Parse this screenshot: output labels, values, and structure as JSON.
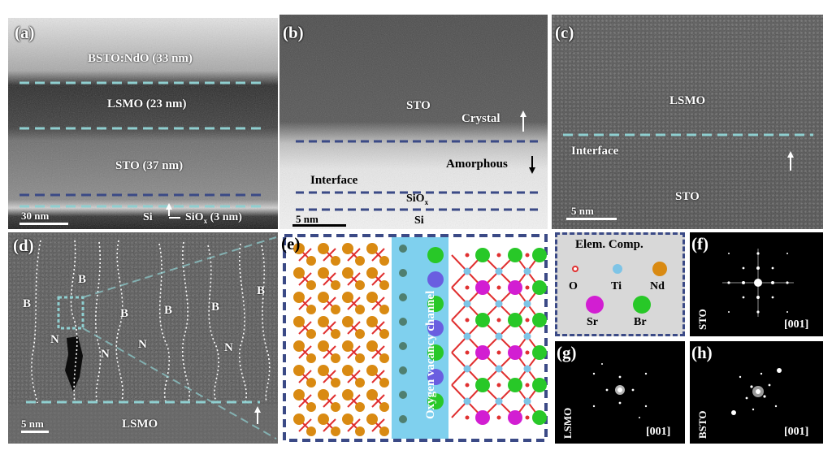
{
  "panels": {
    "a": {
      "label": "(a)",
      "layers": [
        "BSTO:NdO (33 nm)",
        "LSMO (23 nm)",
        "STO (37 nm)"
      ],
      "si": "Si",
      "siox": "SiO",
      "siox_sub": "x",
      "siox_thk": "(3 nm)",
      "scalebar": "30 nm"
    },
    "b": {
      "label": "(b)",
      "sto": "STO",
      "crystal": "Crystal",
      "amorphous": "Amorphous",
      "interface": "Interface",
      "siox": "SiO",
      "siox_sub": "x",
      "si": "Si",
      "scalebar": "5 nm"
    },
    "c": {
      "label": "(c)",
      "lsmo": "LSMO",
      "interface": "Interface",
      "sto": "STO",
      "scalebar": "5 nm"
    },
    "d": {
      "label": "(d)",
      "b_marks": [
        "B",
        "B",
        "B",
        "B",
        "B",
        "B"
      ],
      "n_marks": [
        "N",
        "N",
        "N",
        "N"
      ],
      "lsmo": "LSMO",
      "scalebar": "5 nm"
    },
    "e": {
      "label": "(e)",
      "channel": "Oxygen vacancy channel"
    },
    "legend": {
      "title": "Elem. Comp.",
      "items": [
        {
          "name": "O",
          "color": "#e03030"
        },
        {
          "name": "Ti",
          "color": "#7ec4e6"
        },
        {
          "name": "Nd",
          "color": "#d98a12"
        },
        {
          "name": "Sr",
          "color": "#d21ed2"
        },
        {
          "name": "Br",
          "color": "#28c828"
        }
      ]
    },
    "f": {
      "label": "(f)",
      "material": "STO",
      "zone": "[001]"
    },
    "g": {
      "label": "(g)",
      "material": "LSMO",
      "zone": "[001]"
    },
    "h": {
      "label": "(h)",
      "material": "BSTO",
      "zone": "[001]"
    }
  },
  "colors": {
    "cyan_dash": "#8fcfd0",
    "navy_dash": "#3b4a86",
    "channel_blue": "#7fd0ee"
  }
}
